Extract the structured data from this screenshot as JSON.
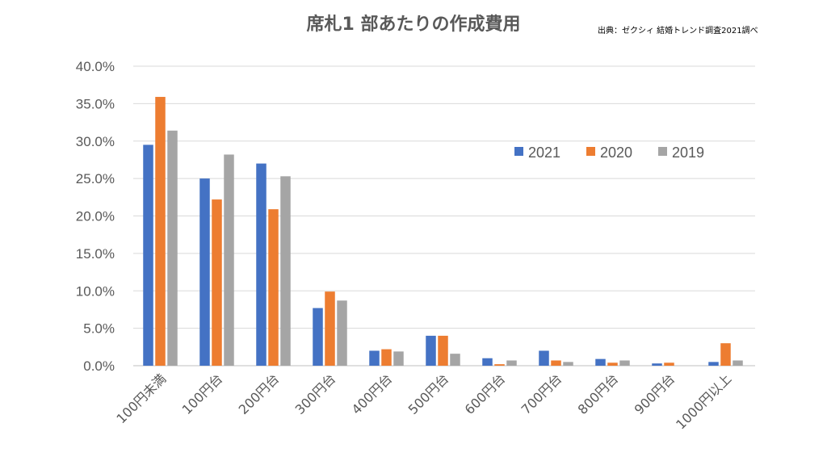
{
  "chart_data": {
    "type": "bar",
    "title": "席札1 部あたりの作成費用",
    "source": "出典：ゼクシィ 結婚トレンド調査2021調べ",
    "xlabel": "",
    "ylabel": "",
    "ylim": [
      0,
      40
    ],
    "yticks": [
      "0.0%",
      "5.0%",
      "10.0%",
      "15.0%",
      "20.0%",
      "25.0%",
      "30.0%",
      "35.0%",
      "40.0%"
    ],
    "grid": true,
    "legend_position": "top-right",
    "categories": [
      "100円未満",
      "100円台",
      "200円台",
      "300円台",
      "400円台",
      "500円台",
      "600円台",
      "700円台",
      "800円台",
      "900円台",
      "1000円以上"
    ],
    "series": [
      {
        "name": "2021",
        "color": "#4472c4",
        "values": [
          29.5,
          25.0,
          27.0,
          7.7,
          2.0,
          4.0,
          1.0,
          2.0,
          0.9,
          0.3,
          0.5
        ]
      },
      {
        "name": "2020",
        "color": "#ed7d31",
        "values": [
          35.9,
          22.2,
          20.9,
          9.9,
          2.2,
          4.0,
          0.2,
          0.7,
          0.4,
          0.4,
          3.0
        ]
      },
      {
        "name": "2019",
        "color": "#a5a5a5",
        "values": [
          31.4,
          28.2,
          25.3,
          8.7,
          1.9,
          1.6,
          0.7,
          0.5,
          0.7,
          0.0,
          0.7
        ]
      }
    ]
  }
}
